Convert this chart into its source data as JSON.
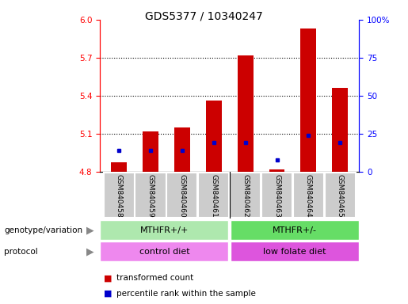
{
  "title": "GDS5377 / 10340247",
  "samples": [
    "GSM840458",
    "GSM840459",
    "GSM840460",
    "GSM840461",
    "GSM840462",
    "GSM840463",
    "GSM840464",
    "GSM840465"
  ],
  "bar_values": [
    4.872,
    5.12,
    5.15,
    5.36,
    5.72,
    4.82,
    5.93,
    5.46
  ],
  "percentile_values": [
    14,
    14,
    14,
    19,
    19,
    8,
    24,
    19
  ],
  "bar_color": "#cc0000",
  "dot_color": "#0000cc",
  "ylim_left": [
    4.8,
    6.0
  ],
  "ylim_right": [
    0,
    100
  ],
  "yticks_left": [
    4.8,
    5.1,
    5.4,
    5.7,
    6.0
  ],
  "yticks_right": [
    0,
    25,
    50,
    75,
    100
  ],
  "ytick_labels_right": [
    "0",
    "25",
    "50",
    "75",
    "100%"
  ],
  "grid_values": [
    5.1,
    5.4,
    5.7
  ],
  "bar_width": 0.5,
  "group1_label": "MTHFR+/+",
  "group2_label": "MTHFR+/-",
  "group1_color": "#aee8ae",
  "group2_color": "#66dd66",
  "protocol1_label": "control diet",
  "protocol2_label": "low folate diet",
  "protocol1_color": "#ee88ee",
  "protocol2_color": "#dd55dd",
  "genotype_label": "genotype/variation",
  "protocol_label": "protocol",
  "legend_red_label": "transformed count",
  "legend_blue_label": "percentile rank within the sample",
  "title_fontsize": 10,
  "tick_fontsize": 7.5,
  "label_fontsize": 8,
  "cell_bg": "#cccccc"
}
